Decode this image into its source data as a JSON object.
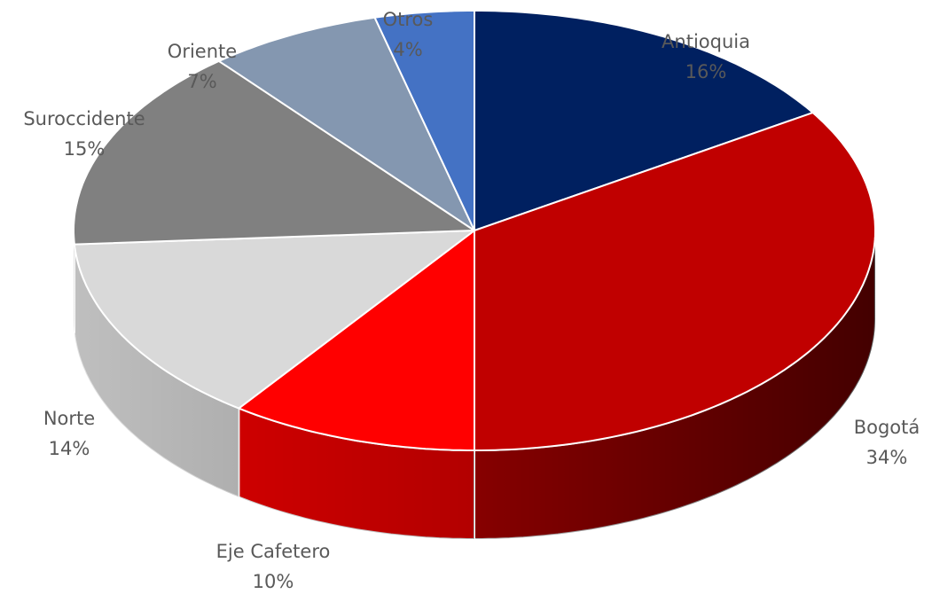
{
  "chart_data": {
    "type": "pie3d",
    "categories": [
      "Antioquia",
      "Bogotá",
      "Eje Cafetero",
      "Norte",
      "Suroccidente",
      "Oriente",
      "Otros"
    ],
    "values": [
      16,
      34,
      10,
      14,
      15,
      7,
      4
    ],
    "value_labels": [
      "16%",
      "34%",
      "10%",
      "14%",
      "15%",
      "7%",
      "4%"
    ],
    "colors": [
      "#002060",
      "#c00000",
      "#ff0000",
      "#d9d9d9",
      "#808080",
      "#8497b0",
      "#4472c4"
    ]
  }
}
